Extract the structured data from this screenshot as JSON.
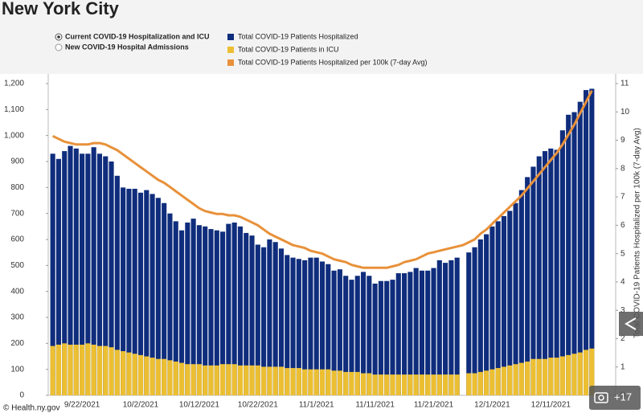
{
  "chart_data": {
    "type": "bar",
    "title": "New York City",
    "options": [
      "Current COVID-19 Hospitalization and ICU",
      "New COVID-19 Hospital Admissions"
    ],
    "y2label": "Total COVID-19 Patients Hospitalized per 100k (7-day Avg)",
    "categories": [
      null,
      null,
      null,
      null,
      null,
      "9/22/2021",
      null,
      null,
      null,
      null,
      null,
      null,
      null,
      null,
      null,
      "10/2/2021",
      null,
      null,
      null,
      null,
      null,
      null,
      null,
      null,
      null,
      "10/12/2021",
      null,
      null,
      null,
      null,
      null,
      null,
      null,
      null,
      null,
      "10/22/2021",
      null,
      null,
      null,
      null,
      null,
      null,
      null,
      null,
      null,
      "11/1/2021",
      null,
      null,
      null,
      null,
      null,
      null,
      null,
      null,
      null,
      "11/11/2021",
      null,
      null,
      null,
      null,
      null,
      null,
      null,
      null,
      null,
      "11/21/2021",
      null,
      null,
      null,
      null,
      null,
      null,
      null,
      null,
      null,
      "12/1/2021",
      null,
      null,
      null,
      null,
      null,
      null,
      null,
      null,
      null,
      "12/11/2021",
      null,
      null,
      null,
      null,
      null,
      null,
      null
    ],
    "series": [
      {
        "name": "Total COVID-19 Patients Hospitalized",
        "color": "#0f2d7c",
        "kind": "bar",
        "values": [
          930,
          910,
          940,
          960,
          950,
          930,
          930,
          955,
          930,
          920,
          900,
          845,
          800,
          795,
          795,
          780,
          790,
          775,
          760,
          740,
          700,
          670,
          635,
          665,
          680,
          655,
          650,
          640,
          635,
          630,
          660,
          665,
          650,
          625,
          615,
          580,
          570,
          600,
          590,
          565,
          540,
          530,
          525,
          520,
          530,
          530,
          515,
          505,
          480,
          485,
          460,
          445,
          460,
          475,
          460,
          430,
          440,
          440,
          445,
          470,
          470,
          475,
          490,
          480,
          480,
          490,
          520,
          510,
          520,
          530,
          null,
          550,
          570,
          600,
          620,
          650,
          670,
          690,
          710,
          740,
          790,
          840,
          880,
          920,
          940,
          950,
          945,
          1020,
          1080,
          1090,
          1130,
          1175,
          1180
        ]
      },
      {
        "name": "Total COVID-19 Patients in ICU",
        "color": "#ecbf33",
        "kind": "bar",
        "values": [
          190,
          195,
          200,
          195,
          195,
          195,
          200,
          195,
          190,
          190,
          185,
          175,
          170,
          165,
          160,
          155,
          150,
          145,
          140,
          140,
          135,
          130,
          125,
          120,
          120,
          120,
          115,
          115,
          115,
          120,
          120,
          120,
          115,
          115,
          115,
          115,
          110,
          110,
          110,
          110,
          105,
          105,
          105,
          100,
          100,
          100,
          100,
          100,
          95,
          95,
          90,
          90,
          90,
          85,
          85,
          80,
          80,
          80,
          80,
          80,
          80,
          80,
          80,
          80,
          80,
          80,
          80,
          80,
          80,
          80,
          null,
          85,
          85,
          90,
          95,
          100,
          105,
          110,
          115,
          120,
          125,
          130,
          140,
          140,
          140,
          145,
          145,
          150,
          155,
          160,
          165,
          175,
          180
        ]
      },
      {
        "name": "Total COVID-19 Patients Hospitalized per 100k (7-day Avg)",
        "color": "#e8913a",
        "kind": "line",
        "axis": "y2",
        "values": [
          9.15,
          9.05,
          8.95,
          8.9,
          8.85,
          8.85,
          8.85,
          8.9,
          8.9,
          8.85,
          8.75,
          8.65,
          8.5,
          8.35,
          8.2,
          8.05,
          7.9,
          7.75,
          7.6,
          7.5,
          7.35,
          7.2,
          7.05,
          6.9,
          6.75,
          6.6,
          6.5,
          6.45,
          6.4,
          6.4,
          6.35,
          6.35,
          6.3,
          6.2,
          6.1,
          6.0,
          5.85,
          5.7,
          5.6,
          5.5,
          5.4,
          5.3,
          5.25,
          5.2,
          5.1,
          5.05,
          5.0,
          4.9,
          4.8,
          4.75,
          4.7,
          4.6,
          4.55,
          4.5,
          4.5,
          4.5,
          4.5,
          4.5,
          4.55,
          4.6,
          4.7,
          4.75,
          4.8,
          4.9,
          5.0,
          5.05,
          5.1,
          5.15,
          5.2,
          5.25,
          5.3,
          5.4,
          5.5,
          5.7,
          5.85,
          6.05,
          6.25,
          6.45,
          6.65,
          6.85,
          7.05,
          7.3,
          7.55,
          7.8,
          8.05,
          8.3,
          8.55,
          8.85,
          9.2,
          9.55,
          9.95,
          10.35,
          10.75
        ]
      }
    ],
    "ylim": [
      0,
      1200
    ],
    "yticks": [
      0,
      100,
      200,
      300,
      400,
      500,
      600,
      700,
      800,
      900,
      {
        "value": 1000,
        "label": "1,000"
      },
      {
        "value": 1100,
        "label": "1,100"
      },
      {
        "value": 1200,
        "label": "1,200"
      }
    ],
    "y2lim": [
      0,
      11
    ],
    "y2ticks": [
      0,
      1,
      2,
      3,
      4,
      5,
      6,
      7,
      8,
      9,
      10,
      11
    ],
    "grid": false
  },
  "source": "© Health.ny.gov",
  "photo_count": "+17"
}
